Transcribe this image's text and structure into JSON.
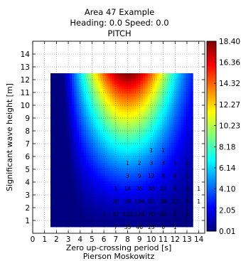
{
  "chart_data": {
    "type": "heatmap",
    "title": [
      "Area 47 Example",
      "Heading: 0.0 Speed: 0.0",
      "PITCH"
    ],
    "xlabel": "Zero up-crossing period [s]",
    "subxlabel": "Pierson Moskowitz",
    "ylabel": "Significant wave height [m]",
    "xlim": [
      0,
      14.5
    ],
    "ylim": [
      0,
      15
    ],
    "xticks": [
      0,
      1,
      2,
      3,
      4,
      5,
      6,
      7,
      8,
      9,
      10,
      11,
      12,
      13,
      14
    ],
    "yticks": [
      1,
      2,
      3,
      4,
      5,
      6,
      7,
      8,
      9,
      10,
      11,
      12,
      13,
      14
    ],
    "grid": true,
    "colormap": "jet",
    "field_extent": {
      "x": [
        1.5,
        13.5
      ],
      "y": [
        0.5,
        12.5
      ]
    },
    "peak": {
      "x": 8.0,
      "y": 12.5,
      "value": 18.4
    },
    "colorbar": {
      "min": 0.01,
      "max": 18.4,
      "ticks": [
        18.4,
        16.36,
        14.32,
        12.27,
        10.23,
        8.18,
        6.14,
        4.1,
        2.05,
        0.01
      ],
      "tick_labels": [
        "18.40",
        "16.36",
        "14.32",
        "12.27",
        "10.23",
        "8.18",
        "6.14",
        "4.10",
        "2.05",
        "0.01"
      ]
    },
    "scatter_counts": [
      {
        "y": 0.5,
        "cells": [
          [
            7,
            "7"
          ],
          [
            8,
            "35"
          ],
          [
            9,
            "46"
          ],
          [
            10,
            "23"
          ],
          [
            11,
            "6"
          ],
          [
            12,
            "1"
          ]
        ]
      },
      {
        "y": 1.5,
        "cells": [
          [
            6,
            "1"
          ],
          [
            7,
            "37"
          ],
          [
            8,
            "124"
          ],
          [
            9,
            "124"
          ],
          [
            10,
            "70"
          ],
          [
            11,
            "22"
          ],
          [
            12,
            "5"
          ],
          [
            13,
            "1"
          ]
        ]
      },
      {
        "y": 2.5,
        "cells": [
          [
            7,
            "10"
          ],
          [
            8,
            "59"
          ],
          [
            9,
            "104"
          ],
          [
            10,
            "82"
          ],
          [
            11,
            "38"
          ],
          [
            12,
            "12"
          ],
          [
            13,
            "3"
          ],
          [
            14,
            "1"
          ]
        ]
      },
      {
        "y": 3.5,
        "cells": [
          [
            7,
            "1"
          ],
          [
            8,
            "14"
          ],
          [
            9,
            "35"
          ],
          [
            10,
            "38"
          ],
          [
            11,
            "22"
          ],
          [
            12,
            "9"
          ],
          [
            13,
            "3"
          ],
          [
            14,
            "1"
          ]
        ]
      },
      {
        "y": 4.5,
        "cells": [
          [
            8,
            "3"
          ],
          [
            9,
            "9"
          ],
          [
            10,
            "12"
          ],
          [
            11,
            "8"
          ],
          [
            12,
            "4"
          ],
          [
            13,
            "1"
          ]
        ]
      },
      {
        "y": 5.5,
        "cells": [
          [
            8,
            "1"
          ],
          [
            9,
            "2"
          ],
          [
            10,
            "3"
          ],
          [
            11,
            "3"
          ],
          [
            12,
            "1"
          ],
          [
            13,
            "1"
          ]
        ]
      },
      {
        "y": 6.5,
        "cells": [
          [
            10,
            "1"
          ],
          [
            11,
            "1"
          ]
        ]
      }
    ]
  }
}
